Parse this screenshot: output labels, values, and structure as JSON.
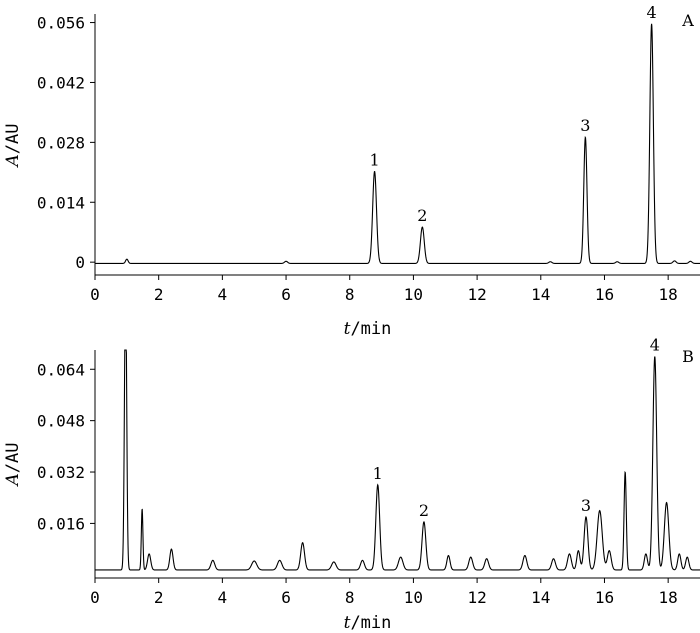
{
  "chart_data": [
    {
      "type": "line",
      "panel_label": "A",
      "xlabel": {
        "symbol": "t",
        "unit": "/min"
      },
      "ylabel": {
        "symbol": "A",
        "unit": "/AU"
      },
      "xlim": [
        0,
        19
      ],
      "ylim": [
        -0.003,
        0.058
      ],
      "xticks": [
        0,
        2,
        4,
        6,
        8,
        10,
        12,
        14,
        16,
        18
      ],
      "yticks": [
        0,
        0.014,
        0.028,
        0.042,
        0.056
      ],
      "ytick_labels": [
        "0",
        "0.014",
        "0.028",
        "0.042",
        "0.056"
      ],
      "baseline": -0.0003,
      "peaks": [
        {
          "label": "1",
          "t": 8.78,
          "height": 0.0215,
          "width": 0.06
        },
        {
          "label": "2",
          "t": 10.28,
          "height": 0.0085,
          "width": 0.06
        },
        {
          "label": "3",
          "t": 15.4,
          "height": 0.0295,
          "width": 0.05
        },
        {
          "label": "4",
          "t": 17.48,
          "height": 0.056,
          "width": 0.055
        }
      ],
      "minor_peaks": [
        {
          "t": 1.0,
          "height": 0.001,
          "width": 0.04
        },
        {
          "t": 6.0,
          "height": 0.0005,
          "width": 0.05
        },
        {
          "t": 14.3,
          "height": 0.0004,
          "width": 0.05
        },
        {
          "t": 16.4,
          "height": 0.0004,
          "width": 0.05
        },
        {
          "t": 18.2,
          "height": 0.0006,
          "width": 0.05
        },
        {
          "t": 18.7,
          "height": 0.0005,
          "width": 0.05
        }
      ]
    },
    {
      "type": "line",
      "panel_label": "B",
      "xlabel": {
        "symbol": "t",
        "unit": "/min"
      },
      "ylabel": {
        "symbol": "A",
        "unit": "/AU"
      },
      "xlim": [
        0,
        19
      ],
      "ylim": [
        -0.001,
        0.07
      ],
      "xticks": [
        0,
        2,
        4,
        6,
        8,
        10,
        12,
        14,
        16,
        18
      ],
      "yticks": [
        0.016,
        0.032,
        0.048,
        0.064
      ],
      "ytick_labels": [
        "0.016",
        "0.032",
        "0.048",
        "0.064"
      ],
      "baseline": 0.0015,
      "peaks": [
        {
          "label": "1",
          "t": 8.88,
          "height": 0.0265,
          "width": 0.06
        },
        {
          "label": "2",
          "t": 10.33,
          "height": 0.015,
          "width": 0.06
        },
        {
          "label": "3",
          "t": 15.42,
          "height": 0.0165,
          "width": 0.06
        },
        {
          "label": "4",
          "t": 17.58,
          "height": 0.0665,
          "width": 0.06
        }
      ],
      "minor_peaks": [
        {
          "t": 0.96,
          "height": 0.09,
          "width": 0.035
        },
        {
          "t": 1.48,
          "height": 0.019,
          "width": 0.025
        },
        {
          "t": 1.7,
          "height": 0.005,
          "width": 0.05
        },
        {
          "t": 2.4,
          "height": 0.0065,
          "width": 0.05
        },
        {
          "t": 3.7,
          "height": 0.003,
          "width": 0.06
        },
        {
          "t": 5.0,
          "height": 0.0028,
          "width": 0.08
        },
        {
          "t": 5.8,
          "height": 0.003,
          "width": 0.07
        },
        {
          "t": 6.52,
          "height": 0.0085,
          "width": 0.06
        },
        {
          "t": 7.5,
          "height": 0.0025,
          "width": 0.07
        },
        {
          "t": 8.4,
          "height": 0.003,
          "width": 0.06
        },
        {
          "t": 9.6,
          "height": 0.004,
          "width": 0.07
        },
        {
          "t": 11.1,
          "height": 0.0045,
          "width": 0.05
        },
        {
          "t": 11.8,
          "height": 0.004,
          "width": 0.06
        },
        {
          "t": 12.3,
          "height": 0.0035,
          "width": 0.06
        },
        {
          "t": 13.5,
          "height": 0.0045,
          "width": 0.06
        },
        {
          "t": 14.4,
          "height": 0.0035,
          "width": 0.06
        },
        {
          "t": 14.9,
          "height": 0.005,
          "width": 0.06
        },
        {
          "t": 15.18,
          "height": 0.006,
          "width": 0.05
        },
        {
          "t": 15.85,
          "height": 0.0185,
          "width": 0.08
        },
        {
          "t": 16.15,
          "height": 0.006,
          "width": 0.06
        },
        {
          "t": 16.65,
          "height": 0.0305,
          "width": 0.035
        },
        {
          "t": 17.3,
          "height": 0.005,
          "width": 0.05
        },
        {
          "t": 17.95,
          "height": 0.021,
          "width": 0.07
        },
        {
          "t": 18.35,
          "height": 0.005,
          "width": 0.05
        },
        {
          "t": 18.6,
          "height": 0.004,
          "width": 0.05
        }
      ]
    }
  ]
}
